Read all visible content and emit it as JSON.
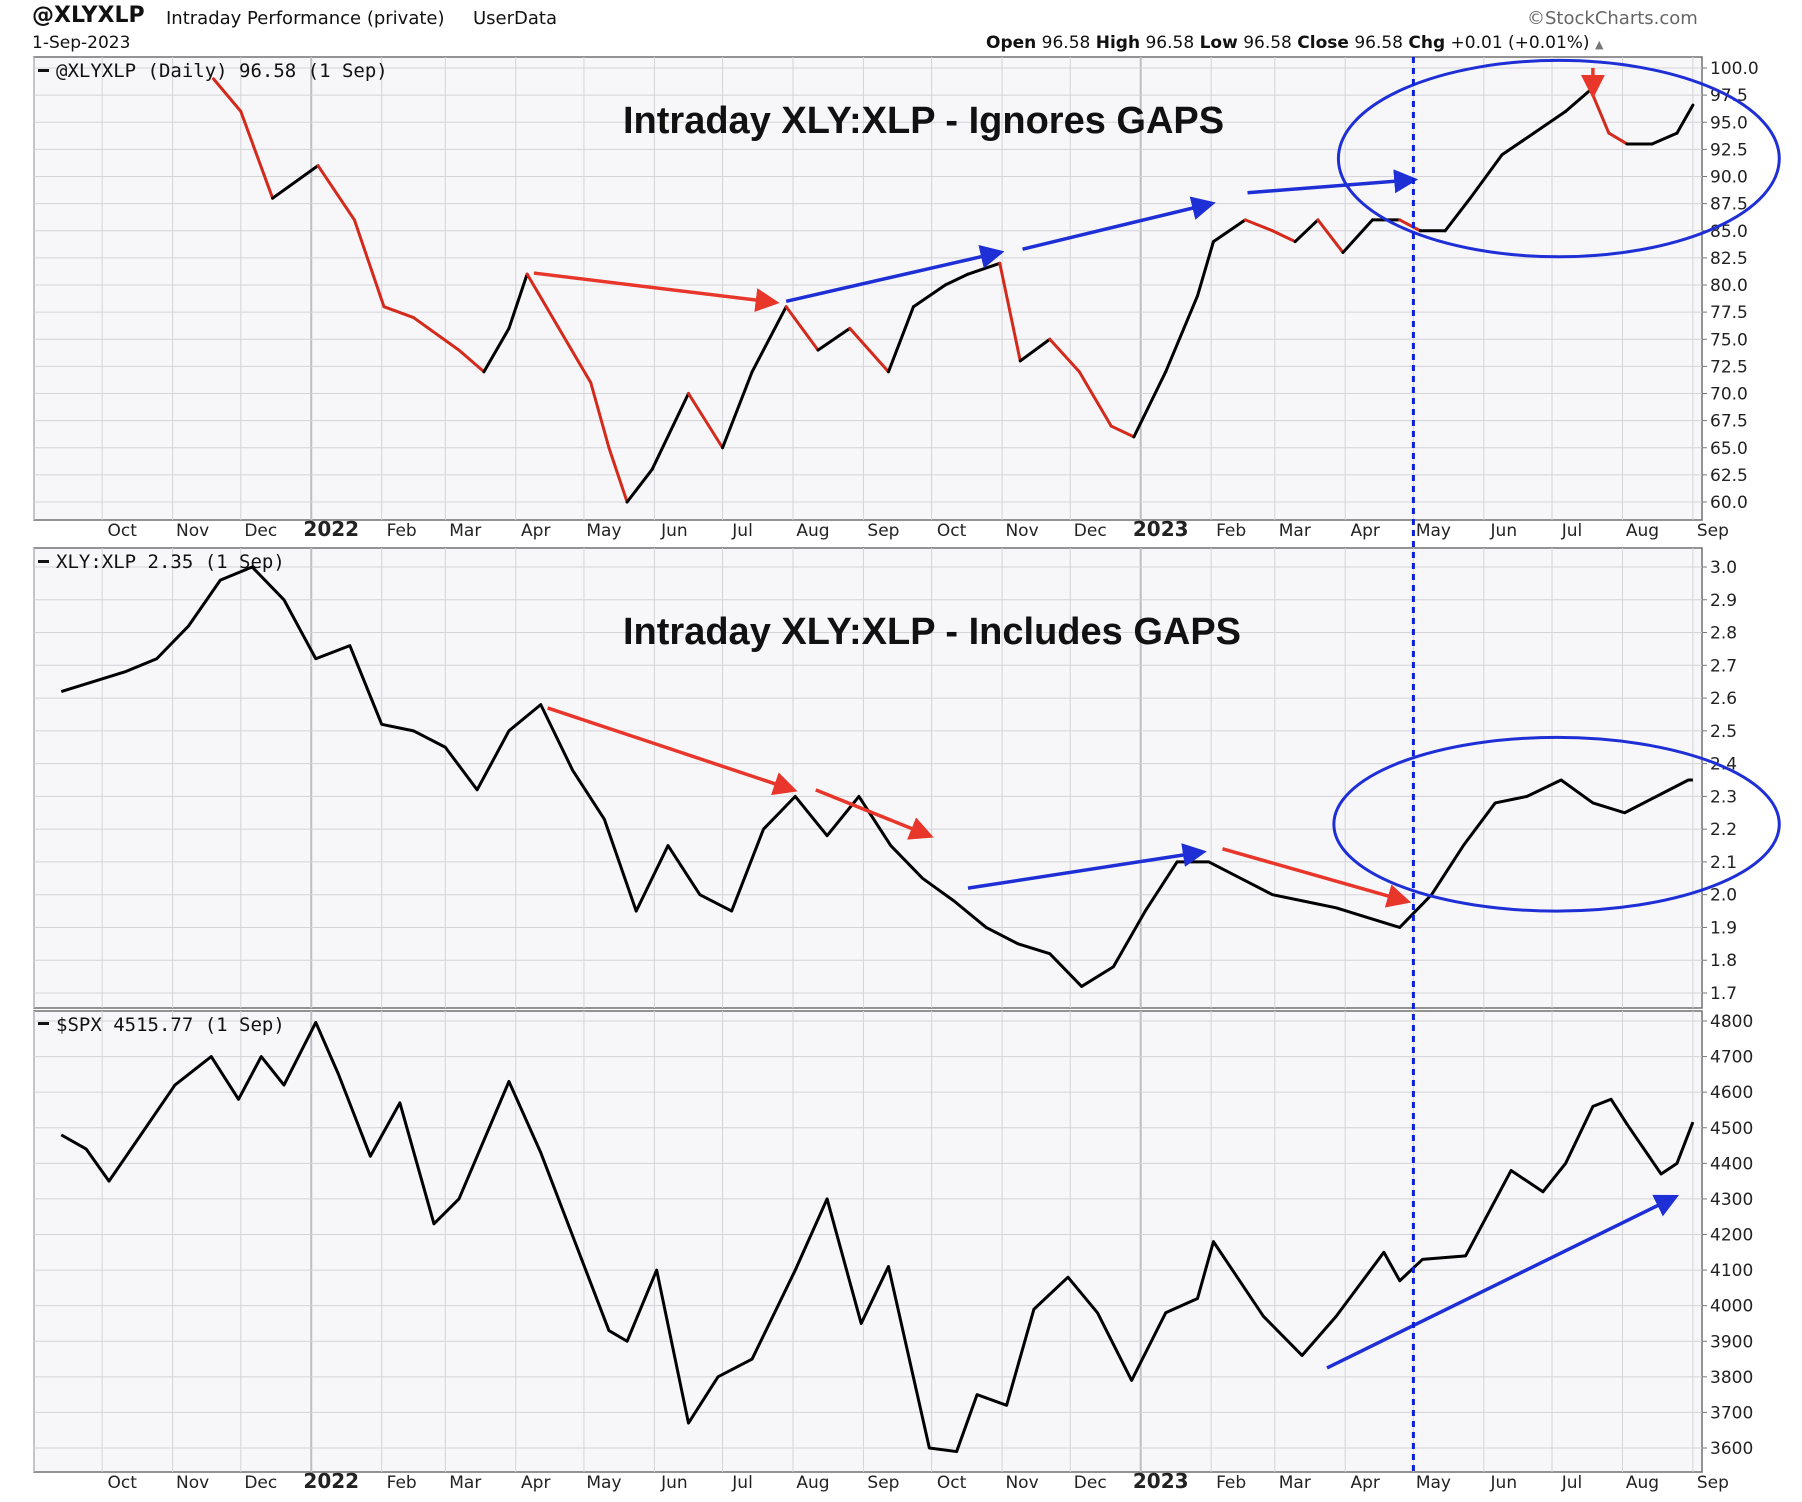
{
  "header": {
    "symbol": "@XLYXLP",
    "description": "Intraday Performance (private)",
    "source": "UserData",
    "date": "1-Sep-2023",
    "brand": "©StockCharts.com",
    "open_label": "Open",
    "open": "96.58",
    "high_label": "High",
    "high": "96.58",
    "low_label": "Low",
    "low": "96.58",
    "close_label": "Close",
    "close": "96.58",
    "chg_label": "Chg",
    "chg": "+0.01 (+0.01%)"
  },
  "colors": {
    "up_line": "#000000",
    "down_line": "#d42a1c",
    "arrow_red": "#e8372a",
    "arrow_blue": "#1f2fd6",
    "marker_line": "#0a1fd8",
    "panel_bg": "#f7f7fa",
    "grid": "#d4d4d8"
  },
  "chart_data": [
    {
      "type": "line",
      "panel_label": "@XLYXLP (Daily) 96.58 (1 Sep)",
      "annotation": "Intraday XLY:XLP - Ignores GAPS",
      "ylim": [
        59,
        101
      ],
      "yticks": [
        "100.0",
        "97.5",
        "95.0",
        "92.5",
        "90.0",
        "87.5",
        "85.0",
        "82.5",
        "80.0",
        "77.5",
        "75.0",
        "72.5",
        "70.0",
        "67.5",
        "65.0",
        "62.5",
        "60.0"
      ],
      "x_start": "2021-11-19",
      "x": [
        "2021-11-19",
        "2021-12-01",
        "2021-12-15",
        "2022-01-04",
        "2022-01-20",
        "2022-02-02",
        "2022-02-15",
        "2022-03-07",
        "2022-03-18",
        "2022-03-29",
        "2022-04-06",
        "2022-04-20",
        "2022-05-04",
        "2022-05-12",
        "2022-05-20",
        "2022-05-31",
        "2022-06-16",
        "2022-07-01",
        "2022-07-14",
        "2022-07-29",
        "2022-08-12",
        "2022-08-26",
        "2022-09-12",
        "2022-09-23",
        "2022-10-07",
        "2022-10-17",
        "2022-10-31",
        "2022-11-09",
        "2022-11-22",
        "2022-12-05",
        "2022-12-19",
        "2022-12-29",
        "2023-01-12",
        "2023-01-26",
        "2023-02-02",
        "2023-02-16",
        "2023-02-28",
        "2023-03-10",
        "2023-03-20",
        "2023-03-31",
        "2023-04-13",
        "2023-04-25",
        "2023-05-04",
        "2023-05-15",
        "2023-05-26",
        "2023-06-09",
        "2023-06-23",
        "2023-07-07",
        "2023-07-18",
        "2023-07-26",
        "2023-08-03",
        "2023-08-14",
        "2023-08-25",
        "2023-09-01"
      ],
      "values": [
        99,
        96,
        88,
        91,
        86,
        78,
        77,
        74,
        72,
        76,
        81,
        76,
        71,
        65,
        60,
        63,
        70,
        65,
        72,
        78,
        74,
        76,
        72,
        78,
        80,
        81,
        82,
        73,
        75,
        72,
        67,
        66,
        72,
        79,
        84,
        86,
        85,
        84,
        86,
        83,
        86,
        86,
        85,
        85,
        88,
        92,
        94,
        96,
        98,
        94,
        93,
        93,
        94,
        96.58
      ],
      "dates_shown": [
        "Oct",
        "Nov",
        "Dec",
        "2022",
        "Feb",
        "Mar",
        "Apr",
        "May",
        "Jun",
        "Jul",
        "Aug",
        "Sep",
        "Oct",
        "Nov",
        "Dec",
        "2023",
        "Feb",
        "Mar",
        "Apr",
        "May",
        "Jun",
        "Jul",
        "Aug",
        "Sep"
      ],
      "arrows": [
        {
          "color": "red",
          "from": [
            "2022-04-09",
            81.1
          ],
          "to": [
            "2022-07-24",
            78.4
          ]
        },
        {
          "color": "blue",
          "from": [
            "2022-07-29",
            78.5
          ],
          "to": [
            "2022-10-31",
            83.0
          ]
        },
        {
          "color": "blue",
          "from": [
            "2022-11-10",
            83.3
          ],
          "to": [
            "2023-02-01",
            87.5
          ]
        },
        {
          "color": "blue",
          "from": [
            "2023-02-17",
            88.5
          ],
          "to": [
            "2023-05-01",
            89.7
          ]
        },
        {
          "color": "red",
          "from": [
            "2023-07-19",
            100.0
          ],
          "to": [
            "2023-07-19",
            97.6
          ]
        }
      ],
      "ellipse": {
        "center": [
          "2023-07-04",
          91.6
        ],
        "half_width_days": 97,
        "y_top": 100.7,
        "y_bottom": 82.6
      }
    },
    {
      "type": "line",
      "panel_label": "XLY:XLP 2.35 (1 Sep)",
      "annotation": "Intraday XLY:XLP - Includes GAPS",
      "ylim": [
        1.67,
        3.05
      ],
      "yticks": [
        "3.0",
        "2.9",
        "2.8",
        "2.7",
        "2.6",
        "2.5",
        "2.4",
        "2.3",
        "2.2",
        "2.1",
        "2.0",
        "1.9",
        "1.8",
        "1.7"
      ],
      "x_start": "2021-09-13",
      "x": [
        "2021-09-13",
        "2021-09-27",
        "2021-10-11",
        "2021-10-25",
        "2021-11-08",
        "2021-11-22",
        "2021-12-06",
        "2021-12-20",
        "2022-01-03",
        "2022-01-18",
        "2022-02-01",
        "2022-02-15",
        "2022-03-01",
        "2022-03-15",
        "2022-03-29",
        "2022-04-12",
        "2022-04-26",
        "2022-05-10",
        "2022-05-24",
        "2022-06-07",
        "2022-06-21",
        "2022-07-05",
        "2022-07-19",
        "2022-08-02",
        "2022-08-16",
        "2022-08-30",
        "2022-09-13",
        "2022-09-27",
        "2022-10-11",
        "2022-10-25",
        "2022-11-08",
        "2022-11-22",
        "2022-12-06",
        "2022-12-20",
        "2023-01-03",
        "2023-01-17",
        "2023-01-31",
        "2023-02-14",
        "2023-02-28",
        "2023-03-14",
        "2023-03-28",
        "2023-04-11",
        "2023-04-25",
        "2023-05-09",
        "2023-05-23",
        "2023-06-06",
        "2023-06-20",
        "2023-07-05",
        "2023-07-19",
        "2023-08-02",
        "2023-08-16",
        "2023-08-30",
        "2023-09-01"
      ],
      "values": [
        2.62,
        2.65,
        2.68,
        2.72,
        2.82,
        2.96,
        3.0,
        2.9,
        2.72,
        2.76,
        2.52,
        2.5,
        2.45,
        2.32,
        2.5,
        2.58,
        2.38,
        2.23,
        1.95,
        2.15,
        2.0,
        1.95,
        2.2,
        2.3,
        2.18,
        2.3,
        2.15,
        2.05,
        1.98,
        1.9,
        1.85,
        1.82,
        1.72,
        1.78,
        1.95,
        2.1,
        2.1,
        2.05,
        2.0,
        1.98,
        1.96,
        1.93,
        1.9,
        2.0,
        2.15,
        2.28,
        2.3,
        2.35,
        2.28,
        2.25,
        2.3,
        2.35,
        2.35
      ],
      "arrows": [
        {
          "color": "red",
          "from": [
            "2022-04-15",
            2.57
          ],
          "to": [
            "2022-08-01",
            2.32
          ]
        },
        {
          "color": "red",
          "from": [
            "2022-08-11",
            2.32
          ],
          "to": [
            "2022-09-30",
            2.18
          ]
        },
        {
          "color": "blue",
          "from": [
            "2022-10-17",
            2.02
          ],
          "to": [
            "2023-01-28",
            2.13
          ]
        },
        {
          "color": "red",
          "from": [
            "2023-02-06",
            2.14
          ],
          "to": [
            "2023-04-28",
            1.98
          ]
        }
      ],
      "ellipse": {
        "center": [
          "2023-07-03",
          2.21
        ],
        "half_width_days": 98,
        "y_top": 2.48,
        "y_bottom": 1.95
      }
    },
    {
      "type": "line",
      "panel_label": "$SPX 4515.77 (1 Sep)",
      "ylim": [
        3550,
        4830
      ],
      "yticks": [
        "4800",
        "4700",
        "4600",
        "4500",
        "4400",
        "4300",
        "4200",
        "4100",
        "4000",
        "3900",
        "3800",
        "3700",
        "3600"
      ],
      "x_start": "2021-09-13",
      "x": [
        "2021-09-13",
        "2021-09-24",
        "2021-10-04",
        "2021-10-18",
        "2021-11-02",
        "2021-11-18",
        "2021-11-30",
        "2021-12-10",
        "2021-12-20",
        "2022-01-03",
        "2022-01-13",
        "2022-01-27",
        "2022-02-09",
        "2022-02-24",
        "2022-03-07",
        "2022-03-29",
        "2022-04-12",
        "2022-04-27",
        "2022-05-12",
        "2022-05-20",
        "2022-06-02",
        "2022-06-16",
        "2022-06-29",
        "2022-07-14",
        "2022-08-02",
        "2022-08-16",
        "2022-08-31",
        "2022-09-12",
        "2022-09-30",
        "2022-10-12",
        "2022-10-21",
        "2022-11-03",
        "2022-11-15",
        "2022-11-30",
        "2022-12-13",
        "2022-12-28",
        "2023-01-12",
        "2023-01-26",
        "2023-02-02",
        "2023-02-24",
        "2023-03-13",
        "2023-03-28",
        "2023-04-18",
        "2023-04-25",
        "2023-05-05",
        "2023-05-24",
        "2023-06-13",
        "2023-06-27",
        "2023-07-07",
        "2023-07-19",
        "2023-07-27",
        "2023-08-03",
        "2023-08-18",
        "2023-08-25",
        "2023-09-01"
      ],
      "values": [
        4480,
        4440,
        4350,
        4480,
        4620,
        4700,
        4580,
        4700,
        4620,
        4796,
        4650,
        4420,
        4570,
        4230,
        4300,
        4630,
        4430,
        4180,
        3930,
        3900,
        4100,
        3670,
        3800,
        3850,
        4100,
        4300,
        3950,
        4110,
        3600,
        3590,
        3750,
        3720,
        3990,
        4080,
        3980,
        3790,
        3980,
        4020,
        4180,
        3970,
        3860,
        3970,
        4150,
        4070,
        4130,
        4140,
        4380,
        4320,
        4400,
        4560,
        4580,
        4510,
        4370,
        4400,
        4515.77
      ],
      "dates_shown": [
        "Oct",
        "Nov",
        "Dec",
        "2022",
        "Feb",
        "Mar",
        "Apr",
        "May",
        "Jun",
        "Jul",
        "Aug",
        "Sep",
        "Oct",
        "Nov",
        "Dec",
        "2023",
        "Feb",
        "Mar",
        "Apr",
        "May",
        "Jun",
        "Jul",
        "Aug",
        "Sep"
      ],
      "arrows": [
        {
          "color": "blue",
          "from": [
            "2023-03-24",
            3825
          ],
          "to": [
            "2023-08-24",
            4305
          ]
        }
      ]
    }
  ],
  "marker": {
    "date": "2023-05-01"
  }
}
